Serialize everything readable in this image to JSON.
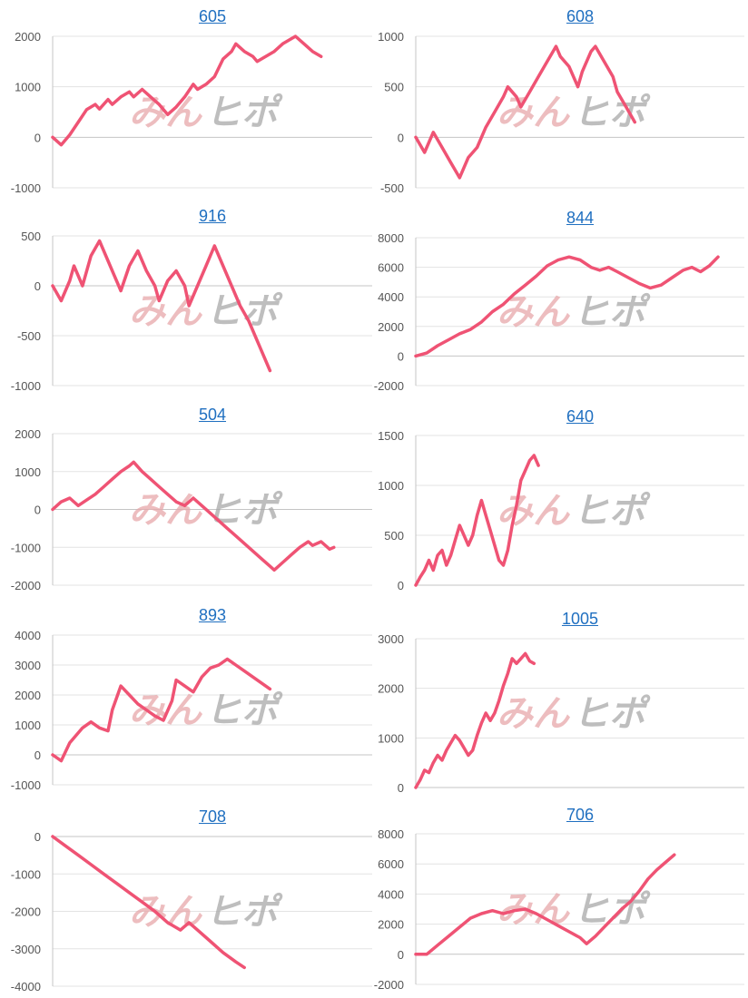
{
  "watermark": {
    "left": "みん",
    "right": "ヒポ"
  },
  "colors": {
    "series": "#ef5374",
    "title_link": "#1f6fc0",
    "watermark_pink": "#e7a7aa",
    "watermark_gray": "#a9a9a9"
  },
  "chart_data": [
    {
      "type": "line",
      "title": "605",
      "ylim": [
        -1000,
        2000
      ],
      "yticks": [
        2000,
        1000,
        0,
        -1000
      ],
      "grid": true,
      "xmax": 75,
      "points": [
        [
          0,
          0
        ],
        [
          2,
          -150
        ],
        [
          4,
          50
        ],
        [
          6,
          300
        ],
        [
          8,
          550
        ],
        [
          10,
          650
        ],
        [
          11,
          560
        ],
        [
          13,
          750
        ],
        [
          14,
          650
        ],
        [
          16,
          800
        ],
        [
          18,
          900
        ],
        [
          19,
          800
        ],
        [
          21,
          950
        ],
        [
          23,
          800
        ],
        [
          25,
          650
        ],
        [
          27,
          450
        ],
        [
          29,
          600
        ],
        [
          31,
          800
        ],
        [
          33,
          1050
        ],
        [
          34,
          950
        ],
        [
          36,
          1050
        ],
        [
          38,
          1200
        ],
        [
          40,
          1550
        ],
        [
          42,
          1700
        ],
        [
          43,
          1850
        ],
        [
          45,
          1700
        ],
        [
          47,
          1600
        ],
        [
          48,
          1500
        ],
        [
          50,
          1600
        ],
        [
          52,
          1700
        ],
        [
          54,
          1850
        ],
        [
          56,
          1950
        ],
        [
          57,
          2000
        ],
        [
          59,
          1850
        ],
        [
          61,
          1700
        ],
        [
          63,
          1600
        ]
      ]
    },
    {
      "type": "line",
      "title": "608",
      "ylim": [
        -500,
        1000
      ],
      "yticks": [
        1000,
        500,
        0,
        -500
      ],
      "grid": true,
      "xmax": 75,
      "points": [
        [
          0,
          0
        ],
        [
          2,
          -150
        ],
        [
          4,
          50
        ],
        [
          6,
          -100
        ],
        [
          8,
          -250
        ],
        [
          10,
          -400
        ],
        [
          12,
          -200
        ],
        [
          14,
          -100
        ],
        [
          16,
          100
        ],
        [
          18,
          250
        ],
        [
          20,
          400
        ],
        [
          21,
          500
        ],
        [
          23,
          400
        ],
        [
          24,
          300
        ],
        [
          26,
          450
        ],
        [
          28,
          600
        ],
        [
          30,
          750
        ],
        [
          32,
          900
        ],
        [
          33,
          800
        ],
        [
          35,
          700
        ],
        [
          37,
          500
        ],
        [
          38,
          650
        ],
        [
          40,
          850
        ],
        [
          41,
          900
        ],
        [
          43,
          750
        ],
        [
          45,
          600
        ],
        [
          46,
          450
        ],
        [
          48,
          300
        ],
        [
          50,
          150
        ]
      ]
    },
    {
      "type": "line",
      "title": "916",
      "ylim": [
        -1000,
        500
      ],
      "yticks": [
        500,
        0,
        -500,
        -1000
      ],
      "grid": true,
      "xmax": 75,
      "points": [
        [
          0,
          0
        ],
        [
          2,
          -150
        ],
        [
          4,
          50
        ],
        [
          5,
          200
        ],
        [
          7,
          0
        ],
        [
          9,
          300
        ],
        [
          11,
          450
        ],
        [
          13,
          250
        ],
        [
          15,
          50
        ],
        [
          16,
          -50
        ],
        [
          18,
          200
        ],
        [
          20,
          350
        ],
        [
          22,
          150
        ],
        [
          24,
          0
        ],
        [
          25,
          -150
        ],
        [
          27,
          50
        ],
        [
          29,
          150
        ],
        [
          31,
          0
        ],
        [
          32,
          -200
        ],
        [
          34,
          0
        ],
        [
          36,
          200
        ],
        [
          38,
          400
        ],
        [
          40,
          200
        ],
        [
          42,
          0
        ],
        [
          44,
          -200
        ],
        [
          46,
          -350
        ],
        [
          48,
          -550
        ],
        [
          50,
          -750
        ],
        [
          51,
          -850
        ]
      ]
    },
    {
      "type": "line",
      "title": "844",
      "ylim": [
        -2000,
        8000
      ],
      "yticks": [
        8000,
        6000,
        4000,
        2000,
        0,
        -2000
      ],
      "grid": true,
      "xmax": 150,
      "points": [
        [
          0,
          0
        ],
        [
          5,
          200
        ],
        [
          10,
          700
        ],
        [
          15,
          1100
        ],
        [
          20,
          1500
        ],
        [
          25,
          1800
        ],
        [
          30,
          2300
        ],
        [
          35,
          3000
        ],
        [
          40,
          3500
        ],
        [
          45,
          4200
        ],
        [
          50,
          4800
        ],
        [
          55,
          5400
        ],
        [
          60,
          6100
        ],
        [
          65,
          6500
        ],
        [
          70,
          6700
        ],
        [
          75,
          6500
        ],
        [
          80,
          6000
        ],
        [
          84,
          5800
        ],
        [
          88,
          6000
        ],
        [
          92,
          5700
        ],
        [
          97,
          5300
        ],
        [
          102,
          4900
        ],
        [
          107,
          4600
        ],
        [
          112,
          4800
        ],
        [
          117,
          5300
        ],
        [
          122,
          5800
        ],
        [
          126,
          6000
        ],
        [
          130,
          5700
        ],
        [
          134,
          6100
        ],
        [
          138,
          6700
        ]
      ]
    },
    {
      "type": "line",
      "title": "504",
      "ylim": [
        -2000,
        2000
      ],
      "yticks": [
        2000,
        1000,
        0,
        -1000,
        -2000
      ],
      "grid": true,
      "xmax": 75,
      "points": [
        [
          0,
          0
        ],
        [
          2,
          200
        ],
        [
          4,
          300
        ],
        [
          6,
          100
        ],
        [
          8,
          250
        ],
        [
          10,
          400
        ],
        [
          12,
          600
        ],
        [
          14,
          800
        ],
        [
          16,
          1000
        ],
        [
          18,
          1150
        ],
        [
          19,
          1250
        ],
        [
          21,
          1000
        ],
        [
          23,
          800
        ],
        [
          25,
          600
        ],
        [
          27,
          400
        ],
        [
          29,
          200
        ],
        [
          31,
          100
        ],
        [
          33,
          300
        ],
        [
          35,
          100
        ],
        [
          37,
          -100
        ],
        [
          39,
          -300
        ],
        [
          41,
          -500
        ],
        [
          43,
          -700
        ],
        [
          45,
          -900
        ],
        [
          47,
          -1100
        ],
        [
          49,
          -1300
        ],
        [
          51,
          -1500
        ],
        [
          52,
          -1600
        ],
        [
          54,
          -1400
        ],
        [
          56,
          -1200
        ],
        [
          58,
          -1000
        ],
        [
          60,
          -850
        ],
        [
          61,
          -950
        ],
        [
          63,
          -850
        ],
        [
          65,
          -1050
        ],
        [
          66,
          -1000
        ]
      ]
    },
    {
      "type": "line",
      "title": "640",
      "ylim": [
        0,
        1500
      ],
      "yticks": [
        1500,
        1000,
        500,
        0
      ],
      "grid": true,
      "xmax": 150,
      "points": [
        [
          0,
          0
        ],
        [
          2,
          80
        ],
        [
          4,
          150
        ],
        [
          6,
          250
        ],
        [
          8,
          150
        ],
        [
          10,
          300
        ],
        [
          12,
          350
        ],
        [
          14,
          200
        ],
        [
          16,
          300
        ],
        [
          18,
          450
        ],
        [
          20,
          600
        ],
        [
          22,
          500
        ],
        [
          24,
          400
        ],
        [
          26,
          500
        ],
        [
          28,
          700
        ],
        [
          30,
          850
        ],
        [
          32,
          700
        ],
        [
          34,
          550
        ],
        [
          36,
          400
        ],
        [
          38,
          250
        ],
        [
          40,
          200
        ],
        [
          42,
          350
        ],
        [
          44,
          600
        ],
        [
          46,
          800
        ],
        [
          48,
          1050
        ],
        [
          50,
          1150
        ],
        [
          52,
          1250
        ],
        [
          54,
          1300
        ],
        [
          56,
          1200
        ]
      ]
    },
    {
      "type": "line",
      "title": "893",
      "ylim": [
        -1000,
        4000
      ],
      "yticks": [
        4000,
        3000,
        2000,
        1000,
        0,
        -1000
      ],
      "grid": true,
      "xmax": 75,
      "points": [
        [
          0,
          0
        ],
        [
          2,
          -200
        ],
        [
          4,
          400
        ],
        [
          7,
          900
        ],
        [
          9,
          1100
        ],
        [
          11,
          900
        ],
        [
          13,
          800
        ],
        [
          14,
          1500
        ],
        [
          16,
          2300
        ],
        [
          18,
          2000
        ],
        [
          20,
          1700
        ],
        [
          22,
          1500
        ],
        [
          24,
          1300
        ],
        [
          26,
          1150
        ],
        [
          28,
          1800
        ],
        [
          29,
          2500
        ],
        [
          31,
          2300
        ],
        [
          33,
          2100
        ],
        [
          35,
          2600
        ],
        [
          37,
          2900
        ],
        [
          39,
          3000
        ],
        [
          41,
          3200
        ],
        [
          43,
          3000
        ],
        [
          45,
          2800
        ],
        [
          47,
          2600
        ],
        [
          49,
          2400
        ],
        [
          51,
          2200
        ]
      ]
    },
    {
      "type": "line",
      "title": "1005",
      "ylim": [
        0,
        3000
      ],
      "yticks": [
        3000,
        2000,
        1000,
        0
      ],
      "grid": true,
      "xmax": 150,
      "points": [
        [
          0,
          0
        ],
        [
          2,
          150
        ],
        [
          4,
          350
        ],
        [
          6,
          300
        ],
        [
          8,
          500
        ],
        [
          10,
          650
        ],
        [
          12,
          550
        ],
        [
          14,
          750
        ],
        [
          16,
          900
        ],
        [
          18,
          1050
        ],
        [
          20,
          950
        ],
        [
          22,
          800
        ],
        [
          24,
          650
        ],
        [
          26,
          750
        ],
        [
          28,
          1050
        ],
        [
          30,
          1300
        ],
        [
          32,
          1500
        ],
        [
          34,
          1350
        ],
        [
          36,
          1500
        ],
        [
          38,
          1750
        ],
        [
          40,
          2050
        ],
        [
          42,
          2300
        ],
        [
          44,
          2600
        ],
        [
          46,
          2500
        ],
        [
          48,
          2600
        ],
        [
          50,
          2700
        ],
        [
          52,
          2550
        ],
        [
          54,
          2500
        ]
      ]
    },
    {
      "type": "line",
      "title": "708",
      "ylim": [
        -4000,
        0
      ],
      "yticks": [
        0,
        -1000,
        -2000,
        -3000,
        -4000
      ],
      "grid": true,
      "xmax": 75,
      "points": [
        [
          0,
          0
        ],
        [
          3,
          -250
        ],
        [
          6,
          -500
        ],
        [
          9,
          -750
        ],
        [
          12,
          -1000
        ],
        [
          15,
          -1250
        ],
        [
          18,
          -1500
        ],
        [
          21,
          -1750
        ],
        [
          24,
          -2000
        ],
        [
          27,
          -2300
        ],
        [
          30,
          -2500
        ],
        [
          32,
          -2300
        ],
        [
          34,
          -2500
        ],
        [
          37,
          -2800
        ],
        [
          40,
          -3100
        ],
        [
          43,
          -3350
        ],
        [
          45,
          -3500
        ]
      ]
    },
    {
      "type": "line",
      "title": "706",
      "ylim": [
        -2000,
        8000
      ],
      "yticks": [
        8000,
        6000,
        4000,
        2000,
        0,
        -2000
      ],
      "grid": true,
      "xmax": 150,
      "points": [
        [
          0,
          0
        ],
        [
          5,
          0
        ],
        [
          10,
          600
        ],
        [
          15,
          1200
        ],
        [
          20,
          1800
        ],
        [
          25,
          2400
        ],
        [
          30,
          2700
        ],
        [
          35,
          2900
        ],
        [
          40,
          2700
        ],
        [
          45,
          2900
        ],
        [
          50,
          3000
        ],
        [
          55,
          2700
        ],
        [
          60,
          2300
        ],
        [
          65,
          1900
        ],
        [
          70,
          1500
        ],
        [
          75,
          1100
        ],
        [
          78,
          700
        ],
        [
          82,
          1200
        ],
        [
          86,
          1800
        ],
        [
          90,
          2400
        ],
        [
          94,
          3000
        ],
        [
          98,
          3500
        ],
        [
          102,
          4200
        ],
        [
          106,
          5000
        ],
        [
          110,
          5600
        ],
        [
          114,
          6100
        ],
        [
          118,
          6600
        ]
      ]
    }
  ]
}
